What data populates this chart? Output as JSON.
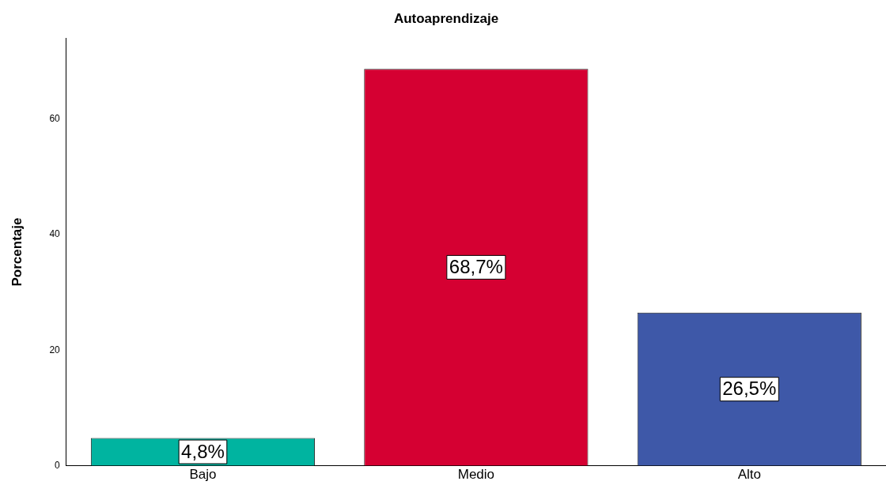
{
  "chart_data": {
    "type": "bar",
    "title": "Autoaprendizaje",
    "ylabel": "Porcentaje",
    "categories": [
      "Bajo",
      "Medio",
      "Alto"
    ],
    "values": [
      4.8,
      68.7,
      26.5
    ],
    "value_labels": [
      "4,8%",
      "68,7%",
      "26,5%"
    ],
    "colors": [
      "#00b4a0",
      "#d50032",
      "#3e58a8"
    ],
    "ylim": [
      0,
      74
    ],
    "yticks": [
      0,
      20,
      40,
      60
    ],
    "grid": false,
    "legend": false
  }
}
